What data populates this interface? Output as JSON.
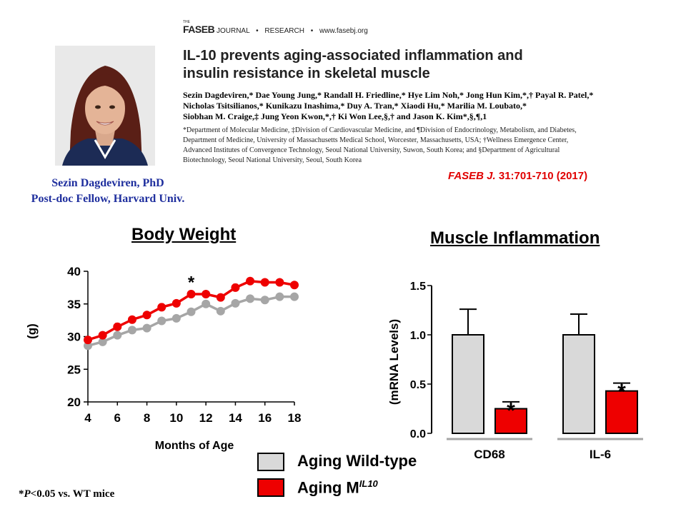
{
  "presenter": {
    "name": "Sezin Dagdeviren, PhD",
    "position": "Post-doc Fellow, Harvard Univ."
  },
  "journal": {
    "the": "THE",
    "name": "FASEB",
    "subtitle": "JOURNAL",
    "section": "RESEARCH",
    "url": "www.fasebj.org"
  },
  "paper": {
    "title_line1": "IL-10 prevents aging-associated inflammation and",
    "title_line2": "insulin resistance in skeletal muscle",
    "authors_line1": "Sezin Dagdeviren,* Dae Young Jung,* Randall H. Friedline,* Hye Lim Noh,* Jong Hun Kim,*,† Payal R. Patel,*",
    "authors_line2": "Nicholas Tsitsilianos,* Kunikazu Inashima,* Duy A. Tran,* Xiaodi Hu,* Marilia M. Loubato,*",
    "authors_line3": "Siobhan M. Craige,‡ Jung Yeon Kwon,*,† Ki Won Lee,§,† and Jason K. Kim*,§,¶,1",
    "aff_line1": "*Department of Molecular Medicine, ‡Division of Cardiovascular Medicine, and ¶Division of Endocrinology, Metabolism, and Diabetes,",
    "aff_line2": "Department of Medicine, University of Massachusetts Medical School, Worcester, Massachusetts, USA; †Wellness Emergence Center,",
    "aff_line3": "Advanced Institutes of Convergence Technology, Seoul National University, Suwon, South Korea; and §Department of Agricultural",
    "aff_line4": "Biotechnology, Seoul National University, Seoul, South Korea",
    "citation_journal": "FASEB J.",
    "citation_ref": "31:701-710 (2017)"
  },
  "legend": {
    "wt_label": "Aging Wild-type",
    "ko_label": "Aging M",
    "ko_super": "IL10"
  },
  "colors": {
    "wt": "#d9d9d9",
    "wt_line": "#a6a6a6",
    "ko": "#ee0000"
  },
  "footnote": {
    "star": "*",
    "p": "P",
    "rest": "<0.05 vs. WT mice"
  },
  "chart_data": [
    {
      "type": "line",
      "title": "Body Weight",
      "xlabel": "Months of Age",
      "ylabel": "(g)",
      "xlim": [
        4,
        18
      ],
      "ylim": [
        20,
        40
      ],
      "xticks": [
        4,
        6,
        8,
        10,
        12,
        14,
        16,
        18
      ],
      "yticks": [
        20,
        25,
        30,
        35,
        40
      ],
      "x": [
        4,
        5,
        6,
        7,
        8,
        9,
        10,
        11,
        12,
        13,
        14,
        15,
        16,
        17,
        18
      ],
      "series": [
        {
          "name": "Aging Wild-type",
          "values": [
            28.6,
            29.2,
            30.2,
            31.0,
            31.3,
            32.4,
            32.8,
            33.8,
            35.0,
            33.9,
            35.1,
            35.8,
            35.6,
            36.1,
            36.1
          ],
          "errors": [
            0.3,
            0.3,
            0.3,
            0.3,
            0.3,
            0.3,
            0.3,
            0.3,
            0.3,
            0.3,
            0.3,
            0.3,
            0.3,
            0.3,
            0.3
          ]
        },
        {
          "name": "Aging MIL10",
          "values": [
            29.5,
            30.2,
            31.5,
            32.6,
            33.3,
            34.5,
            35.1,
            36.5,
            36.5,
            36.0,
            37.5,
            38.5,
            38.3,
            38.3,
            37.9
          ],
          "errors": [
            0.4,
            0.4,
            0.5,
            0.4,
            0.4,
            0.5,
            0.4,
            0.5,
            0.4,
            0.4,
            0.5,
            0.4,
            0.4,
            0.4,
            0.4
          ]
        }
      ],
      "annotations": [
        {
          "x": 11,
          "text": "*"
        }
      ]
    },
    {
      "type": "bar",
      "title": "Muscle Inflammation",
      "ylabel": "(mRNA Levels)",
      "ylim": [
        0,
        1.5
      ],
      "yticks": [
        "0.0",
        "0.5",
        "1.0",
        "1.5"
      ],
      "categories": [
        "CD68",
        "IL-6"
      ],
      "series": [
        {
          "name": "Aging Wild-type",
          "values": [
            1.0,
            1.0
          ],
          "errors": [
            0.26,
            0.21
          ]
        },
        {
          "name": "Aging MIL10",
          "values": [
            0.25,
            0.43
          ],
          "errors": [
            0.07,
            0.08
          ]
        }
      ],
      "annotations": [
        {
          "category": "CD68",
          "series": "Aging MIL10",
          "text": "*"
        },
        {
          "category": "IL-6",
          "series": "Aging MIL10",
          "text": "*"
        }
      ]
    }
  ]
}
